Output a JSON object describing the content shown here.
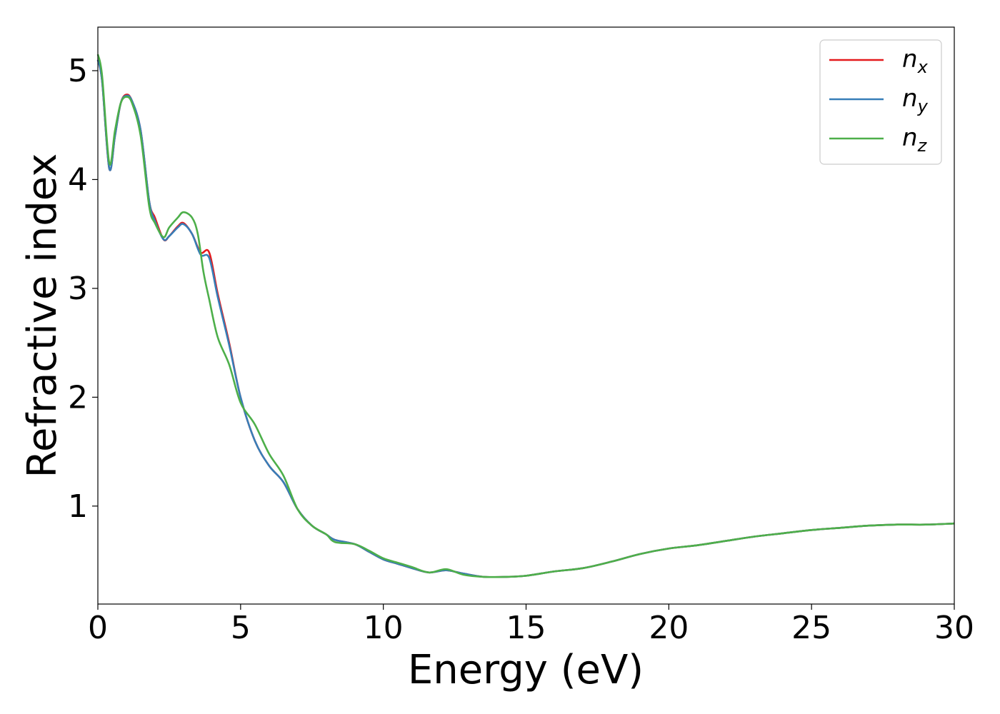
{
  "chart_data": {
    "type": "line",
    "xlabel": "Energy (eV)",
    "ylabel": "Refractive index",
    "xlim": [
      0,
      30
    ],
    "ylim": [
      0.1,
      5.4
    ],
    "xticks": [
      0,
      5,
      10,
      15,
      20,
      25,
      30
    ],
    "xtick_labels": [
      "0",
      "5",
      "10",
      "15",
      "20",
      "25",
      "30"
    ],
    "yticks": [
      1,
      2,
      3,
      4,
      5
    ],
    "ytick_labels": [
      "1",
      "2",
      "3",
      "4",
      "5"
    ],
    "grid": false,
    "legend_position": "top-right",
    "series": [
      {
        "name": "n",
        "subscript": "x",
        "color": "#e41a1c",
        "x": [
          0,
          0.15,
          0.4,
          0.6,
          0.8,
          1.0,
          1.2,
          1.5,
          1.8,
          2.0,
          2.3,
          2.5,
          2.8,
          3.0,
          3.3,
          3.6,
          3.9,
          4.2,
          4.6,
          5.0,
          5.5,
          6.0,
          6.5,
          7.0,
          7.5,
          8.0,
          8.3,
          9.0,
          9.5,
          10.0,
          10.5,
          11.0,
          11.6,
          12.2,
          12.8,
          13.5,
          14.3,
          15.0,
          16.0,
          17.0,
          18.0,
          19.0,
          20.0,
          21.0,
          22.0,
          23.0,
          24.0,
          25.0,
          26.0,
          27.0,
          28.0,
          29.0,
          30.0
        ],
        "y": [
          5.1,
          4.9,
          4.1,
          4.4,
          4.7,
          4.78,
          4.72,
          4.45,
          3.8,
          3.65,
          3.45,
          3.48,
          3.57,
          3.6,
          3.5,
          3.33,
          3.33,
          2.95,
          2.5,
          2.0,
          1.6,
          1.37,
          1.22,
          0.97,
          0.82,
          0.74,
          0.69,
          0.65,
          0.58,
          0.51,
          0.47,
          0.43,
          0.39,
          0.41,
          0.38,
          0.35,
          0.35,
          0.36,
          0.4,
          0.43,
          0.49,
          0.56,
          0.61,
          0.64,
          0.68,
          0.72,
          0.75,
          0.78,
          0.8,
          0.82,
          0.83,
          0.83,
          0.84
        ]
      },
      {
        "name": "n",
        "subscript": "y",
        "color": "#377eb8",
        "x": [
          0,
          0.15,
          0.4,
          0.6,
          0.8,
          1.0,
          1.2,
          1.5,
          1.8,
          2.0,
          2.3,
          2.5,
          2.8,
          3.0,
          3.3,
          3.6,
          3.9,
          4.2,
          4.6,
          5.0,
          5.5,
          6.0,
          6.5,
          7.0,
          7.5,
          8.0,
          8.3,
          9.0,
          9.5,
          10.0,
          10.5,
          11.0,
          11.6,
          12.2,
          12.8,
          13.5,
          14.3,
          15.0,
          16.0,
          17.0,
          18.0,
          19.0,
          20.0,
          21.0,
          22.0,
          23.0,
          24.0,
          25.0,
          26.0,
          27.0,
          28.0,
          29.0,
          30.0
        ],
        "y": [
          5.1,
          4.9,
          4.1,
          4.4,
          4.7,
          4.77,
          4.72,
          4.45,
          3.8,
          3.62,
          3.45,
          3.48,
          3.56,
          3.59,
          3.5,
          3.31,
          3.28,
          2.92,
          2.48,
          2.0,
          1.6,
          1.37,
          1.22,
          0.97,
          0.82,
          0.74,
          0.69,
          0.65,
          0.58,
          0.51,
          0.47,
          0.43,
          0.39,
          0.41,
          0.38,
          0.35,
          0.35,
          0.36,
          0.4,
          0.43,
          0.49,
          0.56,
          0.61,
          0.64,
          0.68,
          0.72,
          0.75,
          0.78,
          0.8,
          0.82,
          0.83,
          0.83,
          0.84
        ]
      },
      {
        "name": "n",
        "subscript": "z",
        "color": "#4daf4a",
        "x": [
          0,
          0.15,
          0.4,
          0.6,
          0.8,
          1.0,
          1.2,
          1.5,
          1.8,
          2.0,
          2.3,
          2.5,
          2.8,
          3.0,
          3.3,
          3.5,
          3.7,
          3.9,
          4.2,
          4.6,
          5.0,
          5.5,
          6.0,
          6.5,
          7.0,
          7.5,
          8.0,
          8.3,
          9.0,
          9.5,
          10.0,
          10.5,
          11.0,
          11.6,
          12.2,
          12.8,
          13.5,
          14.3,
          15.0,
          16.0,
          17.0,
          18.0,
          19.0,
          20.0,
          21.0,
          22.0,
          23.0,
          24.0,
          25.0,
          26.0,
          27.0,
          28.0,
          29.0,
          30.0
        ],
        "y": [
          5.15,
          4.95,
          4.15,
          4.45,
          4.7,
          4.76,
          4.7,
          4.4,
          3.75,
          3.6,
          3.47,
          3.56,
          3.65,
          3.7,
          3.65,
          3.5,
          3.15,
          2.9,
          2.55,
          2.3,
          1.95,
          1.75,
          1.48,
          1.28,
          0.97,
          0.82,
          0.74,
          0.67,
          0.65,
          0.59,
          0.52,
          0.48,
          0.44,
          0.39,
          0.42,
          0.37,
          0.35,
          0.35,
          0.36,
          0.4,
          0.43,
          0.49,
          0.56,
          0.61,
          0.64,
          0.68,
          0.72,
          0.75,
          0.78,
          0.8,
          0.82,
          0.83,
          0.83,
          0.84
        ]
      }
    ]
  }
}
